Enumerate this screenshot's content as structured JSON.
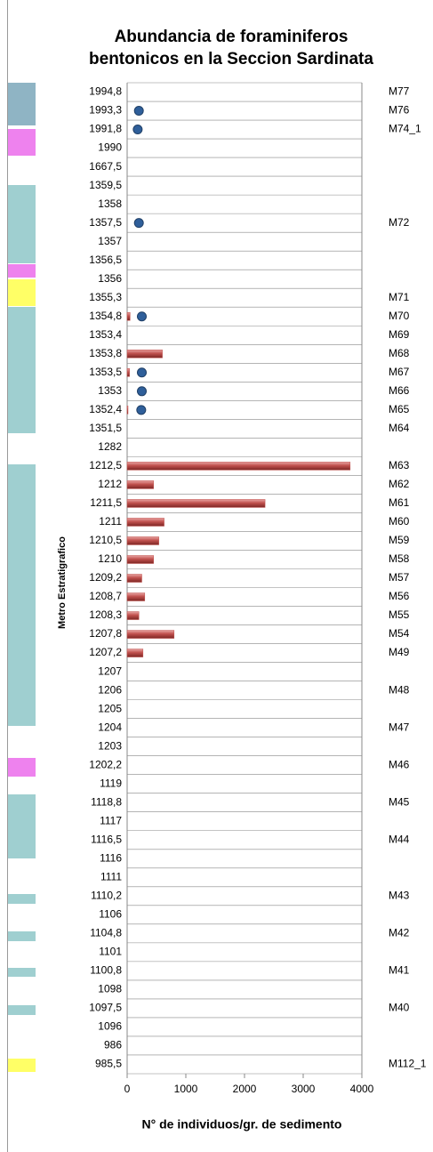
{
  "chart_data": {
    "type": "bar",
    "orientation": "horizontal",
    "title": "Abundancia de foraminiferos bentonicos en la Seccion Sardinata",
    "y_label": "Metro Estratigrafico",
    "x_label": "N° de individuos/gr. de sedimento",
    "categories": [
      "1994,8",
      "1993,3",
      "1991,8",
      "1990",
      "1667,5",
      "1359,5",
      "1358",
      "1357,5",
      "1357",
      "1356,5",
      "1356",
      "1355,3",
      "1354,8",
      "1353,4",
      "1353,8",
      "1353,5",
      "1353",
      "1352,4",
      "1351,5",
      "1282",
      "1212,5",
      "1212",
      "1211,5",
      "1211",
      "1210,5",
      "1210",
      "1209,2",
      "1208,7",
      "1208,3",
      "1207,8",
      "1207,2",
      "1207",
      "1206",
      "1205",
      "1204",
      "1203",
      "1202,2",
      "1119",
      "1118,8",
      "1117",
      "1116,5",
      "1116",
      "1111",
      "1110,2",
      "1106",
      "1104,8",
      "1101",
      "1100,8",
      "1098",
      "1097,5",
      "1096",
      "986",
      "985,5"
    ],
    "series": [
      {
        "color": "#c0504d",
        "values": [
          null,
          null,
          null,
          null,
          null,
          null,
          null,
          null,
          null,
          null,
          null,
          null,
          50,
          null,
          600,
          40,
          null,
          15,
          null,
          null,
          3800,
          450,
          2350,
          630,
          540,
          450,
          250,
          300,
          200,
          800,
          270,
          null,
          null,
          null,
          null,
          null,
          null,
          null,
          null,
          null,
          null,
          null,
          null,
          null,
          null,
          null,
          null,
          null,
          null,
          null,
          null,
          null,
          null
        ]
      },
      {
        "color": "#2f5f9a",
        "marker": "circle",
        "values": [
          null,
          200,
          180,
          null,
          null,
          null,
          null,
          200,
          null,
          null,
          null,
          null,
          250,
          null,
          null,
          250,
          250,
          240,
          null,
          null,
          null,
          null,
          null,
          null,
          null,
          null,
          null,
          null,
          null,
          null,
          null,
          null,
          null,
          null,
          null,
          null,
          null,
          null,
          null,
          null,
          null,
          null,
          null,
          null,
          null,
          null,
          null,
          null,
          null,
          null,
          null,
          null,
          null
        ]
      }
    ],
    "samples": [
      "M77",
      "M76",
      "M74_1",
      null,
      null,
      null,
      null,
      "M72",
      null,
      null,
      null,
      "M71",
      "M70",
      "M69",
      "M68",
      "M67",
      "M66",
      "M65",
      "M64",
      null,
      "M63",
      "M62",
      "M61",
      "M60",
      "M59",
      "M58",
      "M57",
      "M56",
      "M55",
      "M54",
      "M49",
      null,
      "M48",
      null,
      "M47",
      null,
      "M46",
      null,
      "M45",
      null,
      "M44",
      null,
      null,
      "M43",
      null,
      "M42",
      null,
      "M41",
      null,
      "M40",
      null,
      null,
      "M112_1"
    ],
    "xlim": [
      0,
      4000
    ],
    "xticks": [
      0,
      1000,
      2000,
      3000,
      4000
    ],
    "grid": true
  }
}
